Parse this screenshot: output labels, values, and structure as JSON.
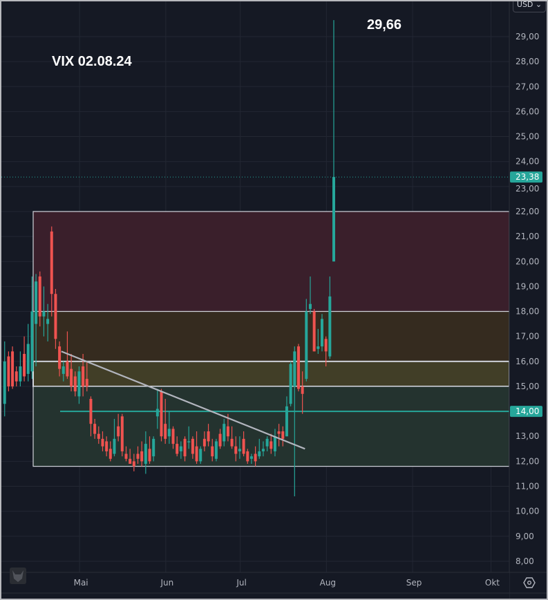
{
  "currency_selector": "USD ⌄",
  "annotations": {
    "title": "VIX 02.08.24",
    "peak": "29,66"
  },
  "price_labels": {
    "last": "23,38",
    "level": "14,00"
  },
  "colors": {
    "up": "#26a69a",
    "down": "#ef5350",
    "background": "#151924",
    "zone_high": "#3a1f2b",
    "zone_mid": "#352b1f",
    "zone_olive": "#413e27",
    "zone_low": "#24332f",
    "level_line": "#26a69a",
    "trend_line": "#b2b5be"
  },
  "icons": {
    "settings": "gear-icon",
    "logo": "owl-logo-icon"
  },
  "chart_data": {
    "type": "candlestick",
    "title": "VIX 02.08.24",
    "ylim": [
      7.6,
      30
    ],
    "y_ticks": [
      "8,00",
      "9,00",
      "10,00",
      "11,00",
      "12,00",
      "13,00",
      "14,00",
      "15,00",
      "16,00",
      "17,00",
      "18,00",
      "19,00",
      "20,00",
      "21,00",
      "22,00",
      "23,00",
      "24,00",
      "25,00",
      "26,00",
      "27,00",
      "28,00",
      "29,00"
    ],
    "x_ticks": [
      {
        "label": "Mai",
        "date": "2024-05-01"
      },
      {
        "label": "Jun",
        "date": "2024-06-03"
      },
      {
        "label": "Jul",
        "date": "2024-07-01"
      },
      {
        "label": "Aug",
        "date": "2024-08-01"
      },
      {
        "label": "Sep",
        "date": "2024-09-03"
      },
      {
        "label": "Okt",
        "date": "2024-10-01"
      }
    ],
    "last_price": 23.38,
    "peak_high": 29.66,
    "horizontal_level": 14.0,
    "zones": [
      {
        "from": 18,
        "to": 22
      },
      {
        "from": 16,
        "to": 18
      },
      {
        "from": 15,
        "to": 16
      },
      {
        "from": 11.8,
        "to": 15
      }
    ],
    "trend_line": {
      "start": {
        "date": "2024-04-24",
        "value": 16.4
      },
      "end": {
        "date": "2024-07-24",
        "value": 12.5
      }
    },
    "ohlc_columns": [
      "date",
      "open",
      "high",
      "low",
      "close"
    ],
    "ohlc": [
      [
        "2024-04-03",
        14.3,
        16.8,
        13.8,
        16.0
      ],
      [
        "2024-04-04",
        16.2,
        16.4,
        14.8,
        15.0
      ],
      [
        "2024-04-05",
        16.4,
        16.6,
        14.9,
        15.0
      ],
      [
        "2024-04-08",
        15.6,
        15.8,
        15.0,
        15.2
      ],
      [
        "2024-04-09",
        15.2,
        16.4,
        15.0,
        15.8
      ],
      [
        "2024-04-10",
        16.3,
        17.0,
        15.2,
        15.4
      ],
      [
        "2024-04-11",
        15.5,
        17.5,
        15.2,
        16.7
      ],
      [
        "2024-04-12",
        15.6,
        19.4,
        15.3,
        18.0
      ],
      [
        "2024-04-15",
        17.5,
        19.5,
        15.8,
        19.2
      ],
      [
        "2024-04-16",
        19.4,
        19.6,
        17.4,
        17.8
      ],
      [
        "2024-04-17",
        17.8,
        19.0,
        17.0,
        18.0
      ],
      [
        "2024-04-18",
        17.5,
        18.3,
        16.8,
        17.7
      ],
      [
        "2024-04-19",
        21.2,
        21.4,
        17.8,
        18.7
      ],
      [
        "2024-04-22",
        18.7,
        18.9,
        16.5,
        16.9
      ],
      [
        "2024-04-23",
        16.6,
        16.8,
        15.4,
        15.7
      ],
      [
        "2024-04-24",
        15.5,
        16.0,
        15.2,
        15.8
      ],
      [
        "2024-04-25",
        16.0,
        17.2,
        15.3,
        15.4
      ],
      [
        "2024-04-26",
        15.7,
        16.3,
        14.8,
        15.0
      ],
      [
        "2024-04-29",
        15.4,
        15.6,
        14.6,
        14.8
      ],
      [
        "2024-04-30",
        14.6,
        15.8,
        14.3,
        15.6
      ],
      [
        "2024-05-01",
        15.8,
        16.3,
        14.6,
        15.0
      ],
      [
        "2024-05-02",
        15.3,
        16.0,
        14.8,
        15.0
      ],
      [
        "2024-05-03",
        14.5,
        14.6,
        13.0,
        13.5
      ],
      [
        "2024-05-06",
        13.5,
        13.7,
        12.9,
        13.1
      ],
      [
        "2024-05-07",
        13.1,
        13.4,
        12.7,
        12.9
      ],
      [
        "2024-05-08",
        12.9,
        13.2,
        12.4,
        12.6
      ],
      [
        "2024-05-09",
        12.8,
        13.0,
        12.2,
        12.4
      ],
      [
        "2024-05-10",
        12.5,
        12.8,
        12.0,
        12.1
      ],
      [
        "2024-05-13",
        12.3,
        13.7,
        12.2,
        12.9
      ],
      [
        "2024-05-14",
        13.4,
        13.9,
        12.8,
        13.0
      ],
      [
        "2024-05-15",
        13.8,
        13.9,
        12.2,
        12.4
      ],
      [
        "2024-05-16",
        12.3,
        12.6,
        12.0,
        12.1
      ],
      [
        "2024-05-17",
        12.1,
        12.5,
        11.9,
        11.9
      ],
      [
        "2024-05-20",
        12.0,
        12.3,
        11.6,
        11.8
      ],
      [
        "2024-05-21",
        12.3,
        12.6,
        11.9,
        12.1
      ],
      [
        "2024-05-22",
        12.4,
        12.8,
        11.8,
        12.0
      ],
      [
        "2024-05-23",
        11.9,
        13.2,
        11.5,
        12.7
      ],
      [
        "2024-05-24",
        12.5,
        13.0,
        11.9,
        12.0
      ],
      [
        "2024-05-28",
        12.2,
        13.0,
        12.0,
        12.9
      ],
      [
        "2024-05-29",
        13.8,
        14.9,
        13.3,
        14.1
      ],
      [
        "2024-05-30",
        14.8,
        14.9,
        12.8,
        13.0
      ],
      [
        "2024-05-31",
        13.5,
        14.5,
        12.7,
        12.9
      ],
      [
        "2024-06-03",
        13.0,
        14.0,
        12.7,
        13.3
      ],
      [
        "2024-06-04",
        13.3,
        13.4,
        12.5,
        12.7
      ],
      [
        "2024-06-05",
        12.7,
        13.0,
        12.2,
        12.3
      ],
      [
        "2024-06-06",
        12.4,
        12.8,
        12.1,
        12.6
      ],
      [
        "2024-06-07",
        12.9,
        13.0,
        12.0,
        12.2
      ],
      [
        "2024-06-10",
        12.8,
        13.4,
        12.5,
        12.8
      ],
      [
        "2024-06-11",
        12.9,
        13.0,
        12.1,
        12.3
      ],
      [
        "2024-06-12",
        12.6,
        13.2,
        11.9,
        12.0
      ],
      [
        "2024-06-13",
        12.0,
        12.6,
        11.9,
        12.5
      ],
      [
        "2024-06-14",
        12.9,
        13.2,
        12.4,
        12.6
      ],
      [
        "2024-06-17",
        13.2,
        13.5,
        12.6,
        12.8
      ],
      [
        "2024-06-18",
        12.6,
        12.9,
        12.0,
        12.2
      ],
      [
        "2024-06-20",
        12.1,
        12.9,
        12.0,
        12.8
      ],
      [
        "2024-06-21",
        13.1,
        13.3,
        12.5,
        12.6
      ],
      [
        "2024-06-24",
        12.8,
        13.7,
        12.6,
        13.5
      ],
      [
        "2024-06-25",
        13.4,
        13.9,
        12.8,
        13.0
      ],
      [
        "2024-06-26",
        12.9,
        13.4,
        12.5,
        12.6
      ],
      [
        "2024-06-27",
        12.6,
        13.0,
        12.0,
        12.3
      ],
      [
        "2024-06-28",
        12.4,
        13.0,
        12.1,
        12.5
      ],
      [
        "2024-07-01",
        12.9,
        13.2,
        12.2,
        12.3
      ],
      [
        "2024-07-02",
        12.4,
        12.5,
        11.9,
        12.0
      ],
      [
        "2024-07-03",
        12.1,
        12.3,
        11.9,
        12.2
      ],
      [
        "2024-07-05",
        12.3,
        12.6,
        11.8,
        12.0
      ],
      [
        "2024-07-08",
        12.2,
        12.9,
        12.1,
        12.4
      ],
      [
        "2024-07-09",
        12.4,
        12.8,
        12.2,
        12.5
      ],
      [
        "2024-07-10",
        12.6,
        13.0,
        12.4,
        12.9
      ],
      [
        "2024-07-11",
        12.8,
        13.1,
        12.3,
        12.5
      ],
      [
        "2024-07-12",
        12.4,
        13.3,
        12.2,
        13.0
      ],
      [
        "2024-07-15",
        13.2,
        13.5,
        12.6,
        13.1
      ],
      [
        "2024-07-16",
        13.2,
        13.4,
        12.6,
        12.9
      ],
      [
        "2024-07-17",
        13.0,
        14.6,
        13.0,
        14.2
      ],
      [
        "2024-07-18",
        14.3,
        16.0,
        14.2,
        15.9
      ],
      [
        "2024-07-19",
        15.0,
        16.6,
        10.6,
        16.4
      ],
      [
        "2024-07-22",
        16.6,
        16.7,
        14.8,
        14.9
      ],
      [
        "2024-07-23",
        15.0,
        15.6,
        13.9,
        14.7
      ],
      [
        "2024-07-24",
        15.3,
        18.5,
        15.2,
        18.0
      ],
      [
        "2024-07-25",
        18.1,
        19.4,
        17.9,
        18.3
      ],
      [
        "2024-07-26",
        18.0,
        18.1,
        16.4,
        16.4
      ],
      [
        "2024-07-29",
        16.5,
        17.3,
        16.3,
        16.6
      ],
      [
        "2024-07-30",
        16.6,
        17.9,
        16.4,
        17.7
      ],
      [
        "2024-07-31",
        16.9,
        17.0,
        15.8,
        16.4
      ],
      [
        "2024-08-01",
        16.2,
        19.4,
        16.1,
        18.6
      ],
      [
        "2024-08-02",
        20.0,
        29.66,
        20.0,
        23.38
      ]
    ]
  }
}
